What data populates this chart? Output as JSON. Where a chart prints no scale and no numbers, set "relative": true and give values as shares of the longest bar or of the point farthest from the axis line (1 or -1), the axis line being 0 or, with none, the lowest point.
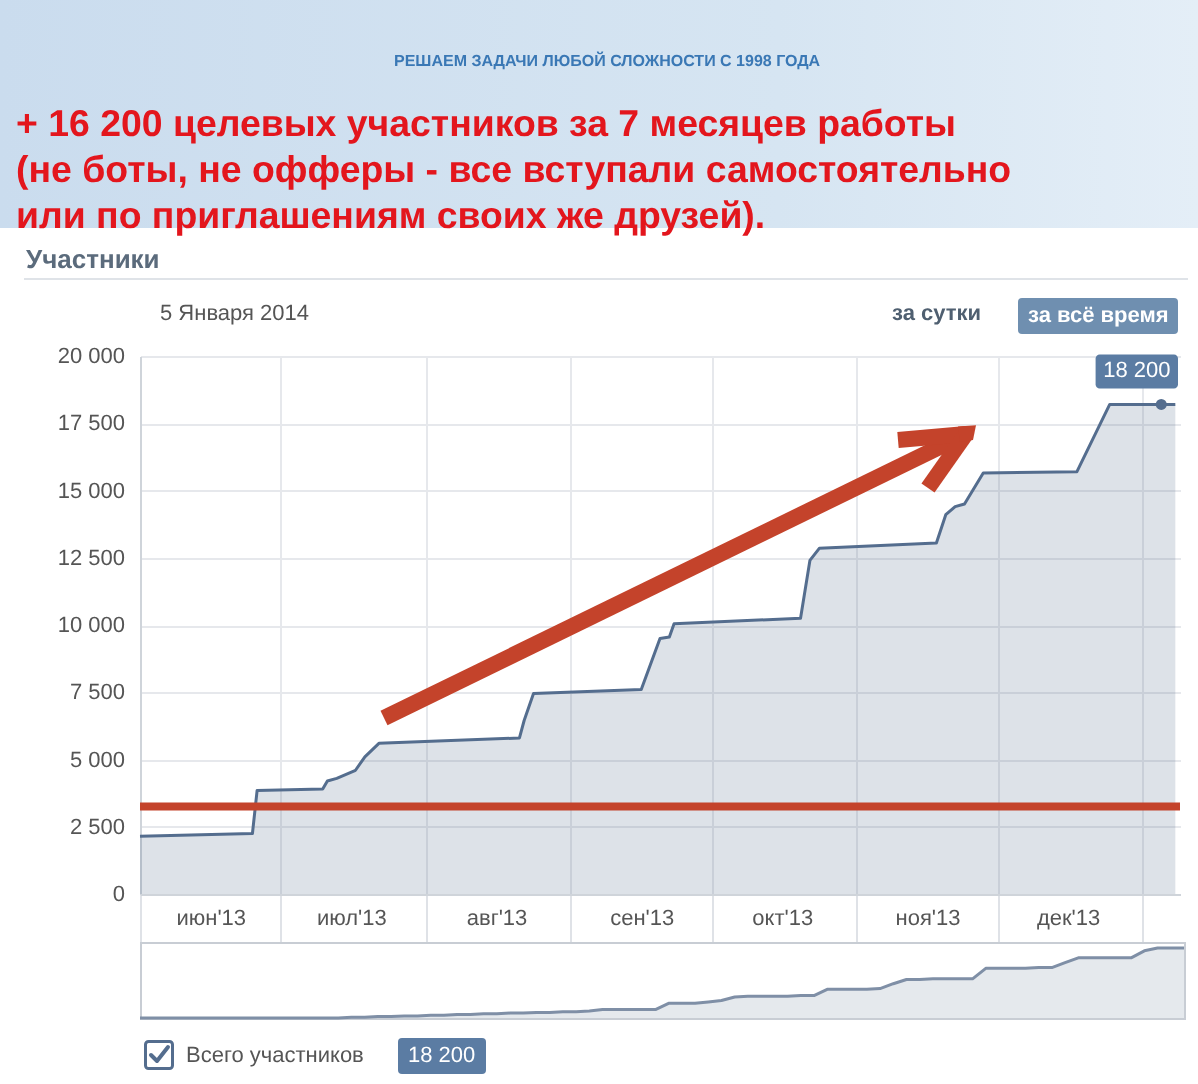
{
  "chart_data": [
    {
      "type": "area",
      "title": "+ 16 200 целевых участников за 7 месяцев работы (не боты, не офферы - все вступали самостоятельно или по приглашениям своих же друзей).",
      "subtitle": "Участники",
      "annotations": [
        "РЕШАЕМ ЗАДАЧИ ЛЮБОЙ СЛОЖНОСТИ С 1998 ГОДА",
        "5 Января 2014",
        "за сутки",
        "за всё время",
        "18 200"
      ],
      "x": [
        "2013-06-01",
        "2013-06-25",
        "2013-06-26",
        "2013-07-10",
        "2013-07-11",
        "2013-07-13",
        "2013-07-17",
        "2013-07-19",
        "2013-07-22",
        "2013-08-21",
        "2013-08-22",
        "2013-08-24",
        "2013-09-16",
        "2013-09-20",
        "2013-09-22",
        "2013-09-23",
        "2013-10-20",
        "2013-10-22",
        "2013-10-24",
        "2013-11-18",
        "2013-11-20",
        "2013-11-22",
        "2013-11-24",
        "2013-11-28",
        "2013-12-18",
        "2013-12-25",
        "2014-01-05",
        "2014-01-08"
      ],
      "series": [
        {
          "name": "Всего участников",
          "color": "#546d8e",
          "values": [
            2150,
            2250,
            3850,
            3900,
            4200,
            4300,
            4600,
            5100,
            5600,
            5800,
            6450,
            7450,
            7600,
            9500,
            9550,
            10050,
            10250,
            12400,
            12850,
            13050,
            14100,
            14400,
            14500,
            15650,
            15700,
            18200,
            18200,
            18200
          ],
          "value_labels": [
            null,
            null,
            null,
            null,
            null,
            null,
            null,
            null,
            null,
            null,
            null,
            null,
            null,
            null,
            null,
            null,
            null,
            null,
            null,
            null,
            null,
            null,
            null,
            null,
            null,
            null,
            "18 200",
            null
          ]
        }
      ],
      "xlim": [
        "2013-06-01",
        "2014-01-09"
      ],
      "xticks": [
        {
          "value": "2013-06-01",
          "label": null
        },
        {
          "value": "2013-06-16",
          "label": "июн'13"
        },
        {
          "value": "2013-07-01",
          "label": null
        },
        {
          "value": "2013-07-16",
          "label": "июл'13"
        },
        {
          "value": "2013-08-01",
          "label": null
        },
        {
          "value": "2013-08-16",
          "label": "авг'13"
        },
        {
          "value": "2013-09-01",
          "label": null
        },
        {
          "value": "2013-09-16",
          "label": "сен'13"
        },
        {
          "value": "2013-10-01",
          "label": null
        },
        {
          "value": "2013-10-16",
          "label": "окт'13"
        },
        {
          "value": "2013-11-01",
          "label": null
        },
        {
          "value": "2013-11-16",
          "label": "ноя'13"
        },
        {
          "value": "2013-12-01",
          "label": null
        },
        {
          "value": "2013-12-16",
          "label": "дек'13"
        },
        {
          "value": "2014-01-01",
          "label": null
        }
      ],
      "ylim": [
        0,
        20000
      ],
      "yticks": [
        0,
        {
          "value": 2500,
          "label": "2 500"
        },
        {
          "value": 5000,
          "label": "5 000"
        },
        {
          "value": 7500,
          "label": "7 500"
        },
        {
          "value": 10000,
          "label": "10 000"
        },
        {
          "value": 12500,
          "label": "12 500"
        },
        {
          "value": 15000,
          "label": "15 000"
        },
        {
          "value": 17500,
          "label": "17 500"
        },
        {
          "value": 20000,
          "label": "20 000"
        }
      ],
      "grid": true,
      "legend": "bottom left",
      "ref_lines": [
        {
          "axis": "y",
          "value": 3250,
          "color": "#c4432b"
        }
      ]
    },
    {
      "type": "area",
      "relative": true,
      "color": "#7f8fa6",
      "categories": [
        null,
        null,
        null,
        null,
        null,
        null,
        null,
        null,
        null,
        null,
        null,
        null,
        null,
        null,
        null,
        null,
        null,
        null,
        null,
        null,
        null,
        null,
        null,
        null,
        null,
        null,
        null,
        null,
        null,
        null,
        null,
        null,
        null,
        null,
        null,
        null,
        null,
        null,
        null,
        null,
        null,
        null,
        null,
        null,
        null,
        null,
        null,
        null,
        null,
        null,
        null,
        null,
        null,
        null,
        null,
        null,
        null,
        null,
        null,
        null,
        null,
        null,
        null,
        null,
        null,
        null,
        null,
        null,
        null,
        null,
        null,
        null,
        null,
        null,
        null,
        null,
        null,
        null,
        null,
        null
      ],
      "values": [
        0,
        0,
        0,
        0,
        0,
        0,
        0,
        0,
        0,
        0,
        0,
        0,
        0,
        0,
        0,
        0,
        0.01,
        0.01,
        0.02,
        0.02,
        0.03,
        0.03,
        0.04,
        0.04,
        0.05,
        0.05,
        0.06,
        0.06,
        0.07,
        0.07,
        0.08,
        0.08,
        0.09,
        0.09,
        0.1,
        0.12,
        0.12,
        0.12,
        0.12,
        0.12,
        0.21,
        0.21,
        0.21,
        0.23,
        0.25,
        0.3,
        0.31,
        0.31,
        0.31,
        0.31,
        0.32,
        0.32,
        0.41,
        0.41,
        0.41,
        0.41,
        0.42,
        0.49,
        0.55,
        0.55,
        0.56,
        0.56,
        0.56,
        0.56,
        0.71,
        0.71,
        0.71,
        0.71,
        0.72,
        0.72,
        0.79,
        0.86,
        0.86,
        0.86,
        0.86,
        0.86,
        0.96,
        1,
        1,
        1
      ]
    }
  ]
}
